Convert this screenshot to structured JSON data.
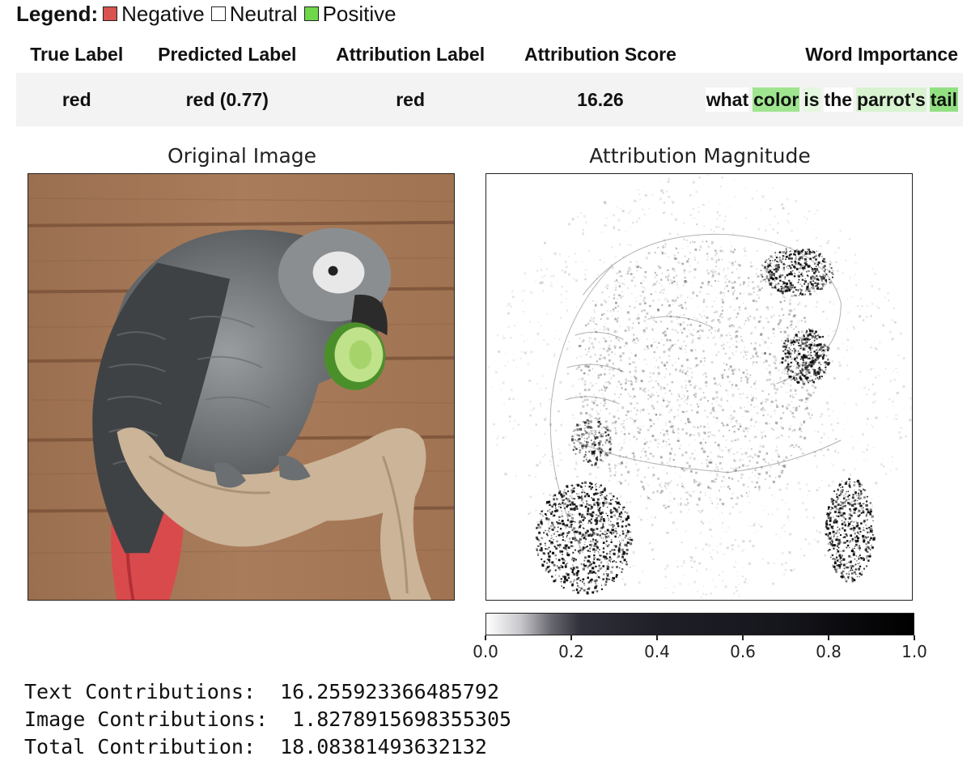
{
  "legend": {
    "title": "Legend:",
    "items": [
      {
        "label": "Negative",
        "color": "#d9534f"
      },
      {
        "label": "Neutral",
        "color": "#ffffff"
      },
      {
        "label": "Positive",
        "color": "#6ed84a"
      }
    ]
  },
  "table": {
    "headers": {
      "true_label": "True Label",
      "predicted_label": "Predicted Label",
      "attribution_label": "Attribution Label",
      "attribution_score": "Attribution Score",
      "word_importance": "Word Importance"
    },
    "row": {
      "true_label": "red",
      "predicted_label": "red (0.77)",
      "attribution_label": "red",
      "attribution_score": "16.26"
    },
    "words": [
      {
        "text": "what",
        "color": "#ffffff"
      },
      {
        "text": "color",
        "color": "#9fe58f"
      },
      {
        "text": "is",
        "color": "#e4f7df"
      },
      {
        "text": "the",
        "color": "#ffffff"
      },
      {
        "text": "parrot's",
        "color": "#d8f3d0"
      },
      {
        "text": "tail",
        "color": "#93e083"
      }
    ]
  },
  "figure": {
    "left_title": "Original Image",
    "right_title": "Attribution Magnitude",
    "colorbar_ticks": [
      "0.0",
      "0.2",
      "0.4",
      "0.6",
      "0.8",
      "1.0"
    ]
  },
  "console": {
    "lines": [
      "Text Contributions:  16.255923366485792",
      "Image Contributions:  1.8278915698355305",
      "Total Contribution:  18.08381493632132"
    ]
  }
}
